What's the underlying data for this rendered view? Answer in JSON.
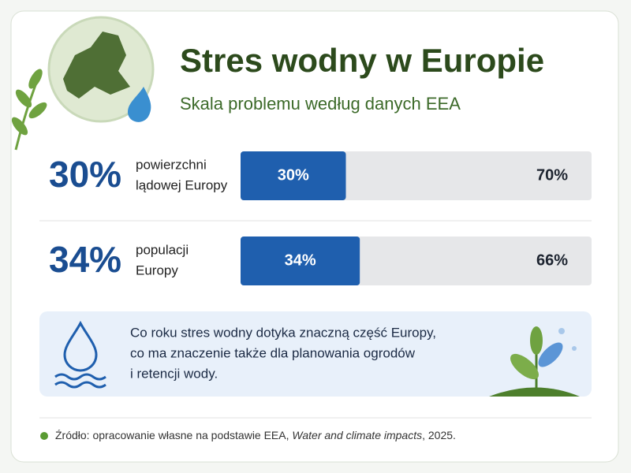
{
  "chart_data": {
    "type": "bar",
    "title": "Stres wodny w Europie",
    "subtitle": "Skala problemu według danych EEA",
    "categories": [
      [
        "powierzchni",
        "lądowej Europy"
      ],
      [
        "populacji",
        "Europy"
      ]
    ],
    "series": [
      {
        "color": "#1f5fae",
        "values": [
          30,
          34
        ],
        "value_labels": [
          "30%",
          "34%"
        ]
      },
      {
        "color": "#e6e7e9",
        "values": [
          70,
          66
        ],
        "value_labels": [
          "70%",
          "66%"
        ]
      }
    ],
    "xlim": [
      0,
      100
    ],
    "note": [
      "Co roku stres wodny dotyka znaczną część Europy,",
      "co ma znaczenie także dla planowania ogrodów",
      "i retencji wody."
    ],
    "source": {
      "prefix": "Źródło: opracowanie własne na podstawie EEA, ",
      "italic": "Water and climate impacts",
      "suffix": ", 2025."
    }
  }
}
